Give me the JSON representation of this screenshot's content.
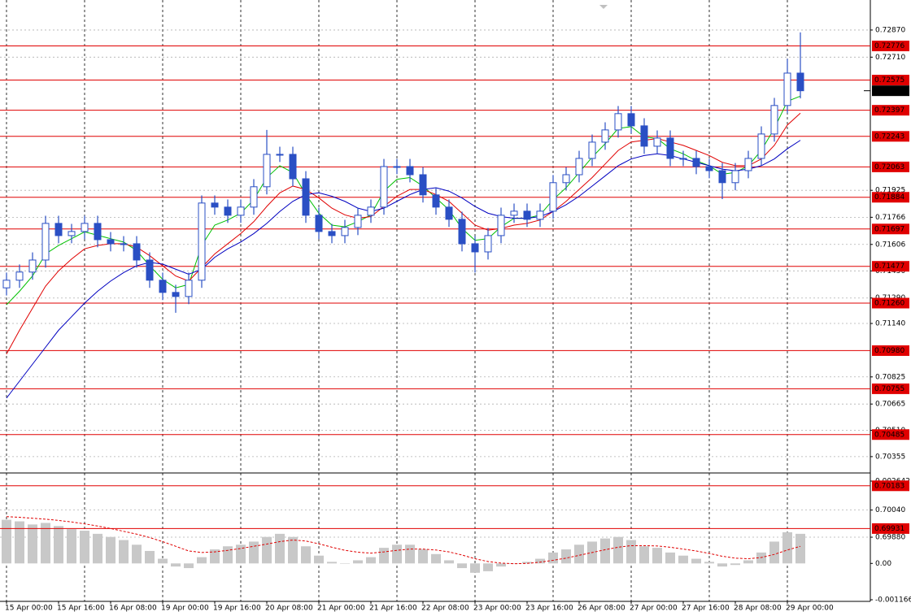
{
  "chart_data": {
    "type": "candlestick",
    "categories": [
      "15 Apr 00:00",
      null,
      null,
      null,
      "15 Apr 16:00",
      null,
      null,
      null,
      "16 Apr 08:00",
      null,
      null,
      null,
      "19 Apr 00:00",
      null,
      null,
      null,
      "19 Apr 16:00",
      null,
      null,
      null,
      "20 Apr 08:00",
      null,
      null,
      null,
      "21 Apr 00:00",
      null,
      null,
      null,
      "21 Apr 16:00",
      null,
      null,
      null,
      "22 Apr 08:00",
      null,
      null,
      null,
      "23 Apr 00:00",
      null,
      null,
      null,
      "23 Apr 16:00",
      null,
      null,
      null,
      "26 Apr 08:00",
      null,
      null,
      null,
      "27 Apr 00:00",
      null,
      null,
      null,
      "27 Apr 16:00",
      null,
      null,
      null,
      "28 Apr 08:00",
      null,
      null,
      null,
      "29 Apr 00:00",
      null
    ],
    "open": [
      0.7135,
      0.71395,
      0.71443,
      0.71514,
      0.7173,
      0.71658,
      0.71682,
      0.7173,
      0.71634,
      0.7161,
      0.7161,
      0.71514,
      0.71395,
      0.71323,
      0.71299,
      0.71395,
      0.7185,
      0.71826,
      0.71778,
      0.71826,
      0.71946,
      0.72137,
      0.72137,
      0.71993,
      0.71778,
      0.71682,
      0.71658,
      0.71706,
      0.71778,
      0.71826,
      0.72065,
      0.72065,
      0.72017,
      0.71898,
      0.71826,
      0.71754,
      0.7161,
      0.71562,
      0.71658,
      0.71778,
      0.71802,
      0.71754,
      0.71802,
      0.7197,
      0.72017,
      0.72113,
      0.72209,
      0.72281,
      0.72377,
      0.72305,
      0.72185,
      0.72233,
      0.72113,
      0.72113,
      0.72065,
      0.72041,
      0.7197,
      0.72041,
      0.72113,
      0.72257,
      0.72425,
      0.72616
    ],
    "high": [
      0.7144,
      0.71488,
      0.71559,
      0.71775,
      0.71775,
      0.71727,
      0.71775,
      0.71775,
      0.71679,
      0.71655,
      0.71655,
      0.71559,
      0.7144,
      0.71368,
      0.7144,
      0.71895,
      0.71895,
      0.71871,
      0.71871,
      0.71991,
      0.72281,
      0.72182,
      0.72182,
      0.72038,
      0.71823,
      0.71727,
      0.71751,
      0.71823,
      0.71871,
      0.7211,
      0.7211,
      0.7211,
      0.72062,
      0.71943,
      0.71871,
      0.71799,
      0.71655,
      0.71703,
      0.71823,
      0.71847,
      0.71847,
      0.71847,
      0.72015,
      0.72062,
      0.72158,
      0.72254,
      0.72326,
      0.72422,
      0.72422,
      0.7235,
      0.72278,
      0.72278,
      0.72158,
      0.72158,
      0.7211,
      0.72086,
      0.72086,
      0.72158,
      0.72302,
      0.7247,
      0.727,
      0.72856
    ],
    "low": [
      0.71305,
      0.7135,
      0.71398,
      0.71469,
      0.71613,
      0.71613,
      0.71637,
      0.71589,
      0.71565,
      0.71565,
      0.71469,
      0.7135,
      0.71278,
      0.71203,
      0.71254,
      0.7135,
      0.71781,
      0.71733,
      0.71733,
      0.71781,
      0.71901,
      0.72092,
      0.71948,
      0.71733,
      0.71637,
      0.71613,
      0.71613,
      0.71661,
      0.71733,
      0.71781,
      0.7202,
      0.71972,
      0.71853,
      0.71781,
      0.71709,
      0.71565,
      0.7144,
      0.71517,
      0.71613,
      0.71733,
      0.71709,
      0.71709,
      0.71757,
      0.71925,
      0.71972,
      0.72068,
      0.72164,
      0.72236,
      0.7226,
      0.7214,
      0.7214,
      0.72068,
      0.72068,
      0.7202,
      0.71996,
      0.71873,
      0.71925,
      0.71996,
      0.72068,
      0.72212,
      0.7238,
      0.72467
    ],
    "close": [
      0.71395,
      0.71443,
      0.71514,
      0.7173,
      0.71658,
      0.71682,
      0.7173,
      0.71634,
      0.7161,
      0.7161,
      0.71514,
      0.71395,
      0.71323,
      0.71299,
      0.71395,
      0.7185,
      0.71826,
      0.71778,
      0.71826,
      0.71946,
      0.72137,
      0.72137,
      0.71993,
      0.71778,
      0.71682,
      0.71658,
      0.71706,
      0.71778,
      0.71826,
      0.72065,
      0.72065,
      0.72017,
      0.71898,
      0.71826,
      0.71754,
      0.7161,
      0.71562,
      0.71658,
      0.71778,
      0.71802,
      0.71754,
      0.71802,
      0.7197,
      0.72017,
      0.72113,
      0.72209,
      0.72281,
      0.72377,
      0.72305,
      0.72185,
      0.72233,
      0.72113,
      0.72113,
      0.72065,
      0.72041,
      0.7197,
      0.72041,
      0.72113,
      0.72257,
      0.72425,
      0.72616,
      0.72512
    ],
    "color": "#2a4fc4",
    "ylim": [
      0.69861,
      0.73023
    ],
    "yticks": [
      {
        "value": 0.7287,
        "label": "0.72870"
      },
      {
        "value": 0.7271,
        "label": "0.72710"
      },
      0.71925,
      0.71766,
      0.71606,
      {
        "value": 0.7145,
        "label": "0.71450"
      },
      {
        "value": 0.7129,
        "label": "0.71290"
      },
      {
        "value": 0.7114,
        "label": "0.71140"
      },
      0.70825,
      0.70665,
      {
        "value": 0.7051,
        "label": "0.70510"
      },
      0.70355,
      {
        "value": 0.7004,
        "label": "0.70040"
      },
      {
        "value": 0.6988,
        "label": "0.69880"
      }
    ],
    "grid": true,
    "moving_averages": [
      {
        "color": "#00c000",
        "values": [
          0.7125,
          0.7133,
          0.7142,
          0.7155,
          0.716,
          0.7164,
          0.7168,
          0.7166,
          0.7164,
          0.7162,
          0.7157,
          0.7148,
          0.714,
          0.7135,
          0.7137,
          0.716,
          0.7172,
          0.7175,
          0.7179,
          0.7187,
          0.72,
          0.7207,
          0.7203,
          0.719,
          0.7179,
          0.7172,
          0.7171,
          0.7174,
          0.7178,
          0.7192,
          0.7199,
          0.72,
          0.7195,
          0.7188,
          0.7181,
          0.717,
          0.7163,
          0.7164,
          0.7171,
          0.7176,
          0.7176,
          0.7178,
          0.7187,
          0.7194,
          0.7203,
          0.7212,
          0.722,
          0.7229,
          0.723,
          0.7224,
          0.7223,
          0.7217,
          0.7214,
          0.721,
          0.7207,
          0.7202,
          0.7203,
          0.7207,
          0.7216,
          0.7229,
          0.7245,
          0.7248
        ]
      },
      {
        "color": "#e00000",
        "values": [
          0.7096,
          0.711,
          0.7123,
          0.7136,
          0.7145,
          0.7152,
          0.7158,
          0.716,
          0.7161,
          0.7161,
          0.7159,
          0.7154,
          0.7148,
          0.7142,
          0.7139,
          0.7147,
          0.7155,
          0.7161,
          0.7167,
          0.7174,
          0.7183,
          0.7191,
          0.7195,
          0.7193,
          0.7188,
          0.7182,
          0.7178,
          0.7176,
          0.7177,
          0.7183,
          0.7189,
          0.7193,
          0.7193,
          0.719,
          0.7186,
          0.7179,
          0.7172,
          0.7169,
          0.717,
          0.7172,
          0.7173,
          0.7175,
          0.718,
          0.7186,
          0.7193,
          0.72,
          0.7208,
          0.7216,
          0.7221,
          0.7222,
          0.7223,
          0.7221,
          0.7219,
          0.7216,
          0.7213,
          0.7209,
          0.7207,
          0.7207,
          0.7211,
          0.7219,
          0.7231,
          0.7238
        ]
      },
      {
        "color": "#0000c0",
        "values": [
          0.707,
          0.708,
          0.709,
          0.71,
          0.711,
          0.7118,
          0.7126,
          0.7133,
          0.7139,
          0.7144,
          0.7148,
          0.715,
          0.7149,
          0.7146,
          0.7143,
          0.7146,
          0.7153,
          0.7158,
          0.7162,
          0.7167,
          0.7173,
          0.718,
          0.7186,
          0.719,
          0.7191,
          0.7189,
          0.7186,
          0.7182,
          0.718,
          0.7182,
          0.7186,
          0.719,
          0.7193,
          0.7194,
          0.7192,
          0.7188,
          0.7183,
          0.7179,
          0.7177,
          0.7176,
          0.7176,
          0.7177,
          0.718,
          0.7184,
          0.7189,
          0.7195,
          0.7201,
          0.7207,
          0.7211,
          0.7213,
          0.7214,
          0.7213,
          0.7211,
          0.7209,
          0.7207,
          0.7205,
          0.7204,
          0.7205,
          0.7207,
          0.7211,
          0.7217,
          0.7222
        ]
      }
    ],
    "levels": {
      "color": "#e00000",
      "values": [
        0.72776,
        0.72575,
        0.72397,
        0.72243,
        0.72063,
        0.71884,
        0.71697,
        0.71477,
        {
          "value": 0.7126,
          "label": "0.71260"
        },
        {
          "value": 0.7098,
          "label": "0.70980"
        },
        0.70755,
        0.70485,
        0.70183,
        0.69931
      ]
    },
    "oscillator": {
      "type": "bar",
      "color": "#c8c8c8",
      "signal_color": "#e00000",
      "values": [
        0.0014,
        0.00135,
        0.00125,
        0.0013,
        0.0012,
        0.0011,
        0.00105,
        0.00095,
        0.00085,
        0.00075,
        0.0006,
        0.0004,
        0.00015,
        -0.0001,
        -0.00015,
        0.0002,
        0.00045,
        0.00055,
        0.0006,
        0.0007,
        0.00085,
        0.00095,
        0.00085,
        0.00055,
        0.00025,
        5e-05,
        0.0,
        0.0001,
        0.0002,
        0.0005,
        0.0006,
        0.0006,
        0.00045,
        0.0003,
        0.0001,
        -0.00015,
        -0.0003,
        -0.00025,
        -0.0001,
        0.0,
        5e-05,
        0.00015,
        0.00035,
        0.00045,
        0.0006,
        0.0007,
        0.0008,
        0.00085,
        0.00075,
        0.00055,
        0.0005,
        0.00035,
        0.00025,
        0.00015,
        5e-05,
        -0.0001,
        -5e-05,
        0.0001,
        0.00035,
        0.0007,
        0.001,
        0.00095
      ],
      "signal": [
        0.0015,
        0.00148,
        0.00145,
        0.00142,
        0.00138,
        0.00133,
        0.00127,
        0.0012,
        0.00112,
        0.00103,
        0.00094,
        0.00083,
        0.0007,
        0.00055,
        0.0004,
        0.00035,
        0.00037,
        0.00042,
        0.00048,
        0.00055,
        0.00062,
        0.0007,
        0.00075,
        0.00072,
        0.00063,
        0.00052,
        0.00042,
        0.00036,
        0.00033,
        0.00037,
        0.00042,
        0.00046,
        0.00046,
        0.00043,
        0.00037,
        0.00027,
        0.00015,
        6e-05,
        1e-05,
        -1e-05,
        0.0,
        4e-05,
        0.0001,
        0.00017,
        0.00026,
        0.00035,
        0.00044,
        0.00052,
        0.00057,
        0.00057,
        0.00056,
        0.00052,
        0.00046,
        0.0004,
        0.00032,
        0.00023,
        0.00017,
        0.00015,
        0.00019,
        0.00029,
        0.00043,
        0.00055
      ],
      "ylim": [
        -0.001166,
        0.002642
      ],
      "yticks": [
        0.002642,
        {
          "value": 0,
          "label": "0.00"
        },
        -0.001166
      ]
    }
  }
}
